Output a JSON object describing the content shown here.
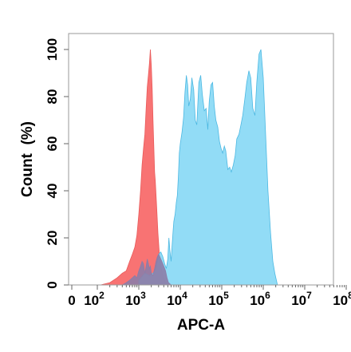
{
  "chart_data": {
    "type": "area",
    "title": "",
    "xlabel": "APC-A",
    "ylabel": "Count  (%)",
    "x_scale": "biexponential",
    "xlim": [
      0,
      100000000
    ],
    "ylim": [
      0,
      100
    ],
    "x_ticks": [
      {
        "value": 0,
        "base": "0",
        "exp": ""
      },
      {
        "value": 100,
        "base": "10",
        "exp": "2"
      },
      {
        "value": 1000,
        "base": "10",
        "exp": "3"
      },
      {
        "value": 10000,
        "base": "10",
        "exp": "4"
      },
      {
        "value": 100000,
        "base": "10",
        "exp": "5"
      },
      {
        "value": 1000000,
        "base": "10",
        "exp": "6"
      },
      {
        "value": 10000000,
        "base": "10",
        "exp": "7"
      },
      {
        "value": 100000000,
        "base": "10",
        "exp": "8"
      }
    ],
    "y_ticks": [
      "0",
      "20",
      "40",
      "60",
      "80",
      "100"
    ],
    "y_tick_values": [
      0,
      20,
      40,
      60,
      80,
      100
    ],
    "series": [
      {
        "color": "#f86b6b",
        "stroke": "#e85a5a",
        "opacity": 0.95,
        "x": [
          0,
          40,
          80,
          120,
          200,
          300,
          400,
          500,
          600,
          700,
          800,
          900,
          1000,
          1100,
          1200,
          1300,
          1400,
          1500,
          1600,
          1700,
          1800,
          1900,
          2000,
          2100,
          2200,
          2300,
          2400,
          2500,
          2700,
          2900,
          3100,
          3400,
          3700,
          4000,
          4400,
          4800,
          5200,
          6000
        ],
        "y": [
          0,
          0,
          0,
          0,
          1,
          3,
          5,
          6,
          10,
          13,
          16,
          21,
          30,
          40,
          51,
          58,
          64,
          75,
          84,
          89,
          94,
          100,
          93,
          83,
          70,
          59,
          48,
          44,
          33,
          22,
          14,
          8,
          5,
          3,
          1,
          0.5,
          0.2,
          0
        ]
      },
      {
        "color": "#7fd6f5",
        "stroke": "#4cb8e2",
        "opacity": 0.85,
        "x": [
          1000,
          1400,
          1800,
          2200,
          2600,
          3000,
          3400,
          3800,
          4200,
          4600,
          5000,
          5300,
          5600,
          6000,
          6300,
          6700,
          7000,
          7500,
          8000,
          8500,
          9000,
          9500,
          10000,
          11000,
          12000,
          13000,
          14000,
          15000,
          16000,
          17500,
          19000,
          21000,
          23000,
          25000,
          28000,
          31000,
          34000,
          38000,
          42000,
          46000,
          50000,
          55000,
          60000,
          66000,
          72000,
          80000,
          88000,
          96000,
          105000,
          115000,
          125000,
          140000,
          155000,
          170000,
          190000,
          210000,
          230000,
          260000,
          290000,
          320000,
          360000,
          400000,
          450000,
          500000,
          560000,
          630000,
          700000,
          790000,
          880000,
          1000000,
          1150000,
          1300000,
          1500000,
          1700000,
          1900000,
          2200000
        ],
        "y": [
          2,
          5,
          4,
          5,
          7,
          13,
          14,
          12,
          9,
          7,
          11,
          20,
          15,
          10,
          16,
          23,
          27,
          30,
          35,
          38,
          46,
          56,
          60,
          65,
          71,
          82,
          89,
          85,
          76,
          79,
          88,
          83,
          70,
          68,
          86,
          89,
          81,
          74,
          75,
          66,
          78,
          85,
          86,
          76,
          70,
          67,
          61,
          58,
          56,
          59,
          57,
          49,
          50,
          48,
          51,
          55,
          62,
          64,
          68,
          72,
          79,
          86,
          91,
          88,
          75,
          72,
          86,
          98,
          100,
          88,
          62,
          40,
          22,
          10,
          5,
          0
        ]
      },
      {
        "color": "#8c7da8",
        "stroke": "#8c7da8",
        "opacity": 0.9,
        "x": [
          400,
          500,
          600,
          700,
          800,
          900,
          1000,
          1100,
          1200,
          1300,
          1400,
          1500,
          1600,
          1700,
          1800,
          1900,
          2000,
          2200,
          2400,
          2600,
          2800,
          3000,
          3200,
          3400,
          3600,
          3800,
          4000,
          4400,
          4800,
          5200,
          6000
        ],
        "y": [
          0,
          1,
          2,
          3,
          4,
          3,
          6,
          8,
          10,
          9,
          5,
          8,
          11,
          9,
          7,
          8,
          5,
          4,
          7,
          10,
          12,
          13,
          12,
          11,
          10,
          9,
          8,
          6,
          3,
          1,
          0
        ]
      }
    ]
  }
}
